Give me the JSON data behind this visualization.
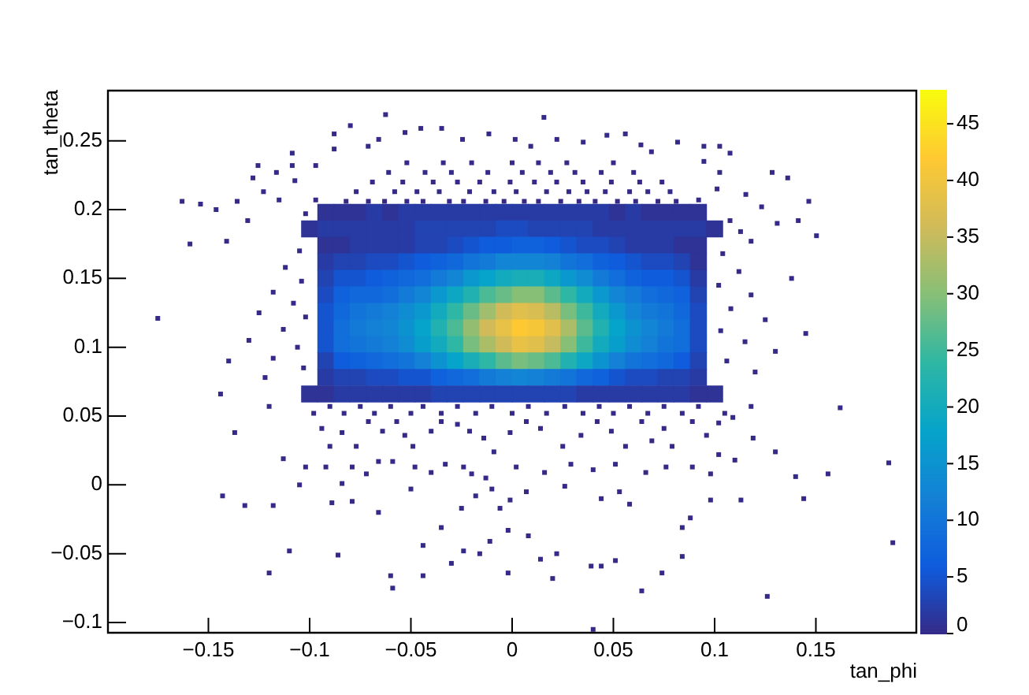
{
  "chart_data": {
    "type": "scatter",
    "xlabel": "tan_phi",
    "ylabel": "tan_theta",
    "xlim": [
      -0.2,
      0.2
    ],
    "ylim": [
      -0.108,
      0.287
    ],
    "xticks": [
      -0.15,
      -0.1,
      -0.05,
      0,
      0.05,
      0.1,
      0.15
    ],
    "yticks": [
      -0.1,
      -0.05,
      0,
      0.05,
      0.1,
      0.15,
      0.2,
      0.25
    ],
    "clim": [
      0,
      48
    ],
    "cticks": [
      0,
      5,
      10,
      15,
      20,
      25,
      30,
      35,
      40,
      45
    ],
    "marker": "square",
    "series": [
      {
        "x": [
          -0.092,
          -0.084,
          -0.076,
          -0.068,
          -0.06,
          -0.052,
          -0.044,
          -0.036,
          -0.028,
          -0.02,
          -0.012,
          -0.004,
          0.004,
          0.012,
          0.02,
          0.028,
          0.036,
          0.044,
          0.052,
          0.06,
          0.068,
          0.076,
          0.084,
          0.092,
          -0.1,
          -0.092,
          -0.084,
          -0.076,
          -0.068,
          -0.06,
          -0.052,
          -0.044,
          -0.036,
          -0.028,
          -0.02,
          -0.012,
          -0.004,
          0.004,
          0.012,
          0.02,
          0.028,
          0.036,
          0.044,
          0.052,
          0.06,
          0.068,
          0.076,
          0.084,
          0.092,
          0.1,
          -0.092,
          -0.084,
          -0.076,
          -0.068,
          -0.06,
          -0.052,
          -0.044,
          -0.036,
          -0.028,
          -0.02,
          -0.012,
          -0.004,
          0.004,
          0.012,
          0.02,
          0.028,
          0.036,
          0.044,
          0.052,
          0.06,
          0.068,
          0.076,
          0.084,
          0.092,
          -0.092,
          -0.084,
          -0.076,
          -0.068,
          -0.06,
          -0.052,
          -0.044,
          -0.036,
          -0.028,
          -0.02,
          -0.012,
          -0.004,
          0.004,
          0.012,
          0.02,
          0.028,
          0.036,
          0.044,
          0.052,
          0.06,
          0.068,
          0.076,
          0.084,
          0.092,
          -0.092,
          -0.084,
          -0.076,
          -0.068,
          -0.06,
          -0.052,
          -0.044,
          -0.036,
          -0.028,
          -0.02,
          -0.012,
          -0.004,
          0.004,
          0.012,
          0.02,
          0.028,
          0.036,
          0.044,
          0.052,
          0.06,
          0.068,
          0.076,
          0.084,
          0.092,
          -0.092,
          -0.084,
          -0.076,
          -0.068,
          -0.06,
          -0.052,
          -0.044,
          -0.036,
          -0.028,
          -0.02,
          -0.012,
          -0.004,
          0.004,
          0.012,
          0.02,
          0.028,
          0.036,
          0.044,
          0.052,
          0.06,
          0.068,
          0.076,
          0.084,
          0.092,
          -0.092,
          -0.084,
          -0.076,
          -0.068,
          -0.06,
          -0.052,
          -0.044,
          -0.036,
          -0.028,
          -0.02,
          -0.012,
          -0.004,
          0.004,
          0.012,
          0.02,
          0.028,
          0.036,
          0.044,
          0.052,
          0.06,
          0.068,
          0.076,
          0.084,
          0.092,
          -0.092,
          -0.084,
          -0.076,
          -0.068,
          -0.06,
          -0.052,
          -0.044,
          -0.036,
          -0.028,
          -0.02,
          -0.012,
          -0.004,
          0.004,
          0.012,
          0.02,
          0.028,
          0.036,
          0.044,
          0.052,
          0.06,
          0.068,
          0.076,
          0.084,
          0.092,
          -0.092,
          -0.084,
          -0.076,
          -0.068,
          -0.06,
          -0.052,
          -0.044,
          -0.036,
          -0.028,
          -0.02,
          -0.012,
          -0.004,
          0.004,
          0.012,
          0.02,
          0.028,
          0.036,
          0.044,
          0.052,
          0.06,
          0.068,
          0.076,
          0.084,
          0.092,
          -0.092,
          -0.084,
          -0.076,
          -0.068,
          -0.06,
          -0.052,
          -0.044,
          -0.036,
          -0.028,
          -0.02,
          -0.012,
          -0.004,
          0.004,
          0.012,
          0.02,
          0.028,
          0.036,
          0.044,
          0.052,
          0.06,
          0.068,
          0.076,
          0.084,
          0.092,
          -0.092,
          -0.084,
          -0.076,
          -0.068,
          -0.06,
          -0.052,
          -0.044,
          -0.036,
          -0.028,
          -0.02,
          -0.012,
          -0.004,
          0.004,
          0.012,
          0.02,
          0.028,
          0.036,
          0.044,
          0.052,
          0.06,
          0.068,
          0.076,
          0.084,
          0.092,
          -0.1,
          -0.092,
          -0.084,
          -0.076,
          -0.068,
          -0.06,
          -0.052,
          -0.044,
          -0.036,
          -0.028,
          -0.02,
          -0.012,
          -0.004,
          0.004,
          0.012,
          0.02,
          0.028,
          0.036,
          0.044,
          0.052,
          0.06,
          0.068,
          0.076,
          0.084,
          0.092,
          0.1
        ],
        "values": [
          0.198,
          0.198,
          0.198,
          0.198,
          0.198,
          0.198,
          0.198,
          0.198,
          0.198,
          0.198,
          0.198,
          0.198,
          0.198,
          0.198,
          0.198,
          0.198,
          0.198,
          0.198,
          0.198,
          0.198,
          0.198,
          0.198,
          0.198,
          0.198,
          0.186,
          0.186,
          0.186,
          0.186,
          0.186,
          0.186,
          0.186,
          0.186,
          0.186,
          0.186,
          0.186,
          0.186,
          0.186,
          0.186,
          0.186,
          0.186,
          0.186,
          0.186,
          0.186,
          0.186,
          0.186,
          0.186,
          0.186,
          0.186,
          0.186,
          0.186,
          0.174,
          0.174,
          0.174,
          0.174,
          0.174,
          0.174,
          0.174,
          0.174,
          0.174,
          0.174,
          0.174,
          0.174,
          0.174,
          0.174,
          0.174,
          0.174,
          0.174,
          0.174,
          0.174,
          0.174,
          0.174,
          0.174,
          0.174,
          0.174,
          0.162,
          0.162,
          0.162,
          0.162,
          0.162,
          0.162,
          0.162,
          0.162,
          0.162,
          0.162,
          0.162,
          0.162,
          0.162,
          0.162,
          0.162,
          0.162,
          0.162,
          0.162,
          0.162,
          0.162,
          0.162,
          0.162,
          0.162,
          0.162,
          0.15,
          0.15,
          0.15,
          0.15,
          0.15,
          0.15,
          0.15,
          0.15,
          0.15,
          0.15,
          0.15,
          0.15,
          0.15,
          0.15,
          0.15,
          0.15,
          0.15,
          0.15,
          0.15,
          0.15,
          0.15,
          0.15,
          0.15,
          0.15,
          0.138,
          0.138,
          0.138,
          0.138,
          0.138,
          0.138,
          0.138,
          0.138,
          0.138,
          0.138,
          0.138,
          0.138,
          0.138,
          0.138,
          0.138,
          0.138,
          0.138,
          0.138,
          0.138,
          0.138,
          0.138,
          0.138,
          0.138,
          0.138,
          0.126,
          0.126,
          0.126,
          0.126,
          0.126,
          0.126,
          0.126,
          0.126,
          0.126,
          0.126,
          0.126,
          0.126,
          0.126,
          0.126,
          0.126,
          0.126,
          0.126,
          0.126,
          0.126,
          0.126,
          0.126,
          0.126,
          0.126,
          0.126,
          0.114,
          0.114,
          0.114,
          0.114,
          0.114,
          0.114,
          0.114,
          0.114,
          0.114,
          0.114,
          0.114,
          0.114,
          0.114,
          0.114,
          0.114,
          0.114,
          0.114,
          0.114,
          0.114,
          0.114,
          0.114,
          0.114,
          0.114,
          0.114,
          0.102,
          0.102,
          0.102,
          0.102,
          0.102,
          0.102,
          0.102,
          0.102,
          0.102,
          0.102,
          0.102,
          0.102,
          0.102,
          0.102,
          0.102,
          0.102,
          0.102,
          0.102,
          0.102,
          0.102,
          0.102,
          0.102,
          0.102,
          0.102,
          0.09,
          0.09,
          0.09,
          0.09,
          0.09,
          0.09,
          0.09,
          0.09,
          0.09,
          0.09,
          0.09,
          0.09,
          0.09,
          0.09,
          0.09,
          0.09,
          0.09,
          0.09,
          0.09,
          0.09,
          0.09,
          0.09,
          0.09,
          0.09,
          0.078,
          0.078,
          0.078,
          0.078,
          0.078,
          0.078,
          0.078,
          0.078,
          0.078,
          0.078,
          0.078,
          0.078,
          0.078,
          0.078,
          0.078,
          0.078,
          0.078,
          0.078,
          0.078,
          0.078,
          0.078,
          0.078,
          0.078,
          0.078,
          0.066,
          0.066,
          0.066,
          0.066,
          0.066,
          0.066,
          0.066,
          0.066,
          0.066,
          0.066,
          0.066,
          0.066,
          0.066,
          0.066,
          0.066,
          0.066,
          0.066,
          0.066,
          0.066,
          0.066,
          0.066,
          0.066,
          0.066,
          0.066,
          0.066,
          0.066
        ],
        "cvalues": [
          1,
          1,
          1,
          2,
          1,
          2,
          2,
          2,
          2,
          2,
          2,
          2,
          2,
          2,
          2,
          2,
          2,
          2,
          1,
          2,
          1,
          1,
          1,
          1,
          1,
          2,
          2,
          2,
          2,
          2,
          2,
          3,
          3,
          3,
          3,
          3,
          4,
          4,
          3,
          3,
          3,
          3,
          2,
          2,
          2,
          2,
          2,
          2,
          2,
          1,
          1,
          1,
          2,
          2,
          2,
          2,
          3,
          3,
          4,
          5,
          6,
          6,
          7,
          7,
          6,
          5,
          4,
          4,
          3,
          2,
          2,
          2,
          1,
          1,
          2,
          3,
          3,
          4,
          4,
          5,
          6,
          7,
          8,
          10,
          11,
          13,
          13,
          13,
          12,
          10,
          9,
          7,
          6,
          5,
          4,
          4,
          3,
          1,
          3,
          5,
          5,
          6,
          7,
          8,
          9,
          11,
          13,
          16,
          18,
          20,
          21,
          21,
          19,
          16,
          14,
          11,
          9,
          7,
          6,
          6,
          5,
          2,
          4,
          7,
          8,
          8,
          9,
          11,
          13,
          16,
          19,
          22,
          26,
          28,
          30,
          30,
          27,
          24,
          20,
          16,
          13,
          11,
          9,
          8,
          7,
          3,
          5,
          8,
          10,
          11,
          12,
          14,
          16,
          20,
          24,
          28,
          32,
          36,
          38,
          37,
          34,
          29,
          25,
          20,
          16,
          13,
          11,
          10,
          8,
          4,
          5,
          9,
          11,
          12,
          13,
          15,
          18,
          22,
          26,
          31,
          36,
          39,
          42,
          41,
          38,
          33,
          27,
          22,
          18,
          15,
          13,
          11,
          9,
          4,
          5,
          9,
          10,
          11,
          12,
          14,
          17,
          20,
          24,
          29,
          33,
          36,
          39,
          38,
          35,
          30,
          25,
          20,
          17,
          14,
          12,
          10,
          9,
          4,
          3,
          6,
          7,
          8,
          9,
          10,
          12,
          15,
          18,
          21,
          24,
          27,
          29,
          28,
          26,
          22,
          19,
          15,
          12,
          10,
          9,
          8,
          6,
          3,
          2,
          3,
          3,
          4,
          4,
          5,
          5,
          7,
          8,
          9,
          11,
          12,
          13,
          12,
          11,
          10,
          8,
          7,
          5,
          4,
          4,
          3,
          3,
          2,
          1,
          1,
          2,
          2,
          2,
          2,
          2,
          2,
          3,
          3,
          3,
          3,
          3,
          3,
          3,
          3,
          3,
          2,
          2,
          2,
          2,
          2,
          2,
          2,
          1,
          1
        ],
        "colors": [
          "#2f3395",
          "#2f3395",
          "#2f3395",
          "#283ba4",
          "#2f3395",
          "#283ba4",
          "#283ba4",
          "#283ba4",
          "#283ba4",
          "#283ba4",
          "#283ba4",
          "#283ba4",
          "#283ba4",
          "#283ba4",
          "#283ba4",
          "#283ba4",
          "#283ba4",
          "#283ba4",
          "#2f3395",
          "#283ba4",
          "#2f3395",
          "#2f3395",
          "#2f3395",
          "#2f3395",
          "#2f3395",
          "#283ba4",
          "#283ba4",
          "#283ba4",
          "#283ba4",
          "#283ba4",
          "#283ba4",
          "#2243b2",
          "#2243b2",
          "#2243b2",
          "#2243b2",
          "#2243b2",
          "#1c4bc1",
          "#1c4bc1",
          "#2243b2",
          "#2243b2",
          "#2243b2",
          "#2243b2",
          "#283ba4",
          "#283ba4",
          "#283ba4",
          "#283ba4",
          "#283ba4",
          "#283ba4",
          "#283ba4",
          "#2f3395",
          "#2f3395",
          "#2f3395",
          "#283ba4",
          "#283ba4",
          "#283ba4",
          "#283ba4",
          "#2243b2",
          "#2243b2",
          "#1c4bc1",
          "#1554cf",
          "#0f5cdd",
          "#0f5cdd",
          "#1062dc",
          "#1062dc",
          "#0f5cdd",
          "#1554cf",
          "#1c4bc1",
          "#1c4bc1",
          "#2243b2",
          "#283ba4",
          "#283ba4",
          "#283ba4",
          "#2f3395",
          "#2f3395",
          "#283ba4",
          "#2243b2",
          "#2243b2",
          "#1c4bc1",
          "#1c4bc1",
          "#1554cf",
          "#0f5cdd",
          "#1062dc",
          "#1168db",
          "#1274d8",
          "#137ad7",
          "#1286d4",
          "#1286d4",
          "#1286d4",
          "#1481d6",
          "#1274d8",
          "#116eda",
          "#1062dc",
          "#0f5cdd",
          "#1554cf",
          "#1c4bc1",
          "#1c4bc1",
          "#2243b2",
          "#2f3395",
          "#2243b2",
          "#1554cf",
          "#1554cf",
          "#0f5cdd",
          "#1062dc",
          "#1168db",
          "#116eda",
          "#137ad7",
          "#1286d4",
          "#0b98ce",
          "#06a4ca",
          "#13aabd",
          "#1aadb7",
          "#1aadb7",
          "#0da7c3",
          "#0b98ce",
          "#0f8cd2",
          "#137ad7",
          "#116eda",
          "#1062dc",
          "#0f5cdd",
          "#0f5cdd",
          "#1554cf",
          "#283ba4",
          "#1c4bc1",
          "#1062dc",
          "#1168db",
          "#1168db",
          "#116eda",
          "#137ad7",
          "#1286d4",
          "#0b98ce",
          "#0da7c3",
          "#21b1b0",
          "#4cba95",
          "#69bc86",
          "#87bf77",
          "#87bf77",
          "#5bbb8d",
          "#2eb7a4",
          "#13aabd",
          "#0b98ce",
          "#1286d4",
          "#137ad7",
          "#116eda",
          "#1168db",
          "#1062dc",
          "#2243b2",
          "#1554cf",
          "#1168db",
          "#1274d8",
          "#137ad7",
          "#1481d6",
          "#0f8cd2",
          "#0b98ce",
          "#13aabd",
          "#2eb7a4",
          "#69bc86",
          "#a0be6d",
          "#d1bb59",
          "#e0bf4c",
          "#d8bd53",
          "#b8bc63",
          "#78be7e",
          "#3db89c",
          "#13aabd",
          "#0b98ce",
          "#1286d4",
          "#137ad7",
          "#1274d8",
          "#1168db",
          "#1c4bc1",
          "#1554cf",
          "#116eda",
          "#137ad7",
          "#1481d6",
          "#1286d4",
          "#0d92d0",
          "#06a4ca",
          "#21b1b0",
          "#4cba95",
          "#93be72",
          "#d1bb59",
          "#e7c246",
          "#fec832",
          "#f6c639",
          "#e0bf4c",
          "#acbd68",
          "#5bbb8d",
          "#21b1b0",
          "#06a4ca",
          "#0d92d0",
          "#1286d4",
          "#137ad7",
          "#116eda",
          "#1c4bc1",
          "#1554cf",
          "#116eda",
          "#1274d8",
          "#137ad7",
          "#1481d6",
          "#0f8cd2",
          "#089ecc",
          "#13aabd",
          "#2eb7a4",
          "#78be7e",
          "#acbd68",
          "#d1bb59",
          "#e7c246",
          "#e0bf4c",
          "#c4bc5e",
          "#87bf77",
          "#3db89c",
          "#13aabd",
          "#089ecc",
          "#0f8cd2",
          "#1481d6",
          "#1274d8",
          "#116eda",
          "#1c4bc1",
          "#2243b2",
          "#0f5cdd",
          "#1062dc",
          "#1168db",
          "#116eda",
          "#1274d8",
          "#1481d6",
          "#0d92d0",
          "#06a4ca",
          "#1aadb7",
          "#2eb7a4",
          "#5bbb8d",
          "#78be7e",
          "#69bc86",
          "#4cba95",
          "#21b1b0",
          "#0da7c3",
          "#0d92d0",
          "#1481d6",
          "#1274d8",
          "#116eda",
          "#1168db",
          "#0f5cdd",
          "#2243b2",
          "#283ba4",
          "#2243b2",
          "#2243b2",
          "#1c4bc1",
          "#1c4bc1",
          "#1554cf",
          "#1554cf",
          "#1062dc",
          "#1168db",
          "#116eda",
          "#137ad7",
          "#1481d6",
          "#1286d4",
          "#1481d6",
          "#137ad7",
          "#1274d8",
          "#1168db",
          "#1062dc",
          "#1554cf",
          "#1c4bc1",
          "#1c4bc1",
          "#2243b2",
          "#2243b2",
          "#283ba4",
          "#2f3395",
          "#2f3395",
          "#283ba4",
          "#283ba4",
          "#283ba4",
          "#283ba4",
          "#283ba4",
          "#283ba4",
          "#2243b2",
          "#2243b2",
          "#2243b2",
          "#2243b2",
          "#2243b2",
          "#2243b2",
          "#2243b2",
          "#2243b2",
          "#2243b2",
          "#283ba4",
          "#283ba4",
          "#283ba4",
          "#283ba4",
          "#283ba4",
          "#283ba4",
          "#283ba4",
          "#2f3395",
          "#2f3395"
        ]
      },
      {
        "color": "#352a87",
        "x": [
          -0.0625,
          0.0157,
          -0.0799,
          -0.0451,
          -0.0348,
          -0.0529,
          0.0559,
          0.0817,
          0.0947,
          0.1025,
          -0.0879,
          -0.1086,
          -0.0879,
          -0.0711,
          -0.0659,
          -0.0245,
          -0.0115,
          0.0015,
          0.0092,
          0.0221,
          0.0351,
          0.0468,
          0.0636,
          0.0688,
          -0.1255,
          -0.1086,
          -0.097,
          0.1076,
          0.0947,
          -0.128,
          -0.1164,
          -0.1073,
          -0.1358,
          -0.163,
          -0.1539,
          -0.1462,
          -0.1306,
          -0.1228,
          -0.1151,
          0.1154,
          0.1232,
          0.1309,
          0.1284,
          0.1361,
          0.1465,
          0.1413,
          0.1503,
          0.1076,
          0.1128,
          0.118,
          0.1012,
          0.0921,
          0.1025,
          -0.097,
          -0.102,
          -0.141,
          -0.1591,
          -0.082,
          -0.071,
          -0.063,
          -0.052,
          -0.044,
          -0.031,
          -0.024,
          -0.013,
          -0.004,
          0.006,
          0.013,
          0.024,
          0.033,
          0.041,
          0.052,
          0.061,
          0.072,
          0.081,
          -0.077,
          -0.058,
          -0.047,
          -0.036,
          -0.021,
          -0.009,
          0.002,
          0.017,
          0.028,
          0.037,
          0.046,
          0.058,
          0.067,
          0.078,
          -0.069,
          -0.054,
          -0.039,
          -0.027,
          -0.016,
          -0.001,
          0.011,
          0.022,
          0.035,
          0.049,
          0.063,
          0.074,
          -0.061,
          -0.043,
          -0.03,
          -0.012,
          0.005,
          0.019,
          0.031,
          0.044,
          0.06,
          -0.052,
          -0.034,
          -0.02,
          0.0,
          0.013,
          0.027,
          0.05,
          -0.105,
          -0.112,
          -0.104,
          -0.118,
          -0.108,
          -0.125,
          -0.102,
          -0.113,
          -0.13,
          -0.106,
          -0.118,
          -0.103,
          -0.122,
          -0.14,
          -0.175,
          0.104,
          0.112,
          0.102,
          0.118,
          0.108,
          0.125,
          0.103,
          0.115,
          0.13,
          0.106,
          0.12,
          0.138,
          0.145,
          -0.12,
          -0.09,
          -0.075,
          -0.06,
          -0.044,
          -0.027,
          -0.01,
          0.008,
          0.026,
          0.043,
          0.058,
          0.075,
          0.092,
          0.118,
          -0.098,
          -0.083,
          -0.068,
          -0.05,
          -0.035,
          -0.018,
          0.0,
          0.017,
          0.035,
          0.05,
          0.067,
          0.084,
          0.105,
          -0.094,
          -0.09,
          -0.084,
          -0.077,
          -0.071,
          -0.064,
          -0.057,
          -0.053,
          -0.049,
          -0.04,
          -0.035,
          -0.027,
          -0.021,
          -0.014,
          -0.009,
          -0.001,
          0.007,
          0.014,
          0.025,
          0.034,
          0.042,
          0.049,
          0.056,
          0.064,
          0.069,
          0.075,
          0.079,
          0.089,
          0.096,
          0.102,
          0.119,
          0.109,
          -0.137,
          -0.113,
          -0.144,
          -0.143,
          -0.132,
          -0.118,
          -0.11,
          -0.12,
          -0.086,
          -0.06,
          -0.059,
          -0.044,
          -0.044,
          -0.035,
          -0.03,
          -0.024,
          -0.016,
          -0.011,
          -0.002,
          -0.002,
          0.008,
          0.014,
          0.02,
          0.022,
          0.039,
          0.044,
          0.051,
          0.064,
          0.074,
          0.084,
          0.084,
          0.126,
          0.188,
          0.186,
          0.156,
          0.14,
          0.13,
          0.162,
          0.144,
          0.113,
          0.098,
          0.088,
          0.11,
          0.053,
          0.058,
          0.044,
          0.026,
          0.007,
          -0.001,
          -0.006,
          -0.01,
          -0.018,
          -0.025,
          -0.05,
          -0.066,
          -0.079,
          -0.089,
          -0.105,
          -0.084,
          -0.102,
          -0.092,
          -0.079,
          -0.072,
          -0.066,
          -0.059,
          -0.048,
          -0.04,
          -0.033,
          -0.024,
          -0.02,
          -0.013,
          0.002,
          0.016,
          0.029,
          0.04,
          0.051,
          0.066,
          0.076,
          0.089,
          0.098,
          0.102,
          0.04
        ],
        "values": [
          0.269,
          0.267,
          0.261,
          0.259,
          0.259,
          0.256,
          0.255,
          0.249,
          0.246,
          0.246,
          0.255,
          0.241,
          0.244,
          0.246,
          0.251,
          0.251,
          0.255,
          0.251,
          0.246,
          0.251,
          0.249,
          0.254,
          0.247,
          0.242,
          0.232,
          0.232,
          0.232,
          0.241,
          0.235,
          0.223,
          0.227,
          0.221,
          0.206,
          0.206,
          0.204,
          0.2,
          0.192,
          0.213,
          0.207,
          0.211,
          0.202,
          0.19,
          0.227,
          0.223,
          0.206,
          0.192,
          0.181,
          0.192,
          0.184,
          0.177,
          0.215,
          0.207,
          0.227,
          0.207,
          0.197,
          0.177,
          0.175,
          0.206,
          0.206,
          0.206,
          0.206,
          0.206,
          0.206,
          0.206,
          0.206,
          0.206,
          0.206,
          0.206,
          0.206,
          0.206,
          0.206,
          0.206,
          0.206,
          0.206,
          0.206,
          0.213,
          0.213,
          0.213,
          0.213,
          0.213,
          0.213,
          0.213,
          0.213,
          0.213,
          0.213,
          0.213,
          0.213,
          0.213,
          0.213,
          0.22,
          0.22,
          0.22,
          0.22,
          0.22,
          0.22,
          0.22,
          0.22,
          0.22,
          0.22,
          0.22,
          0.22,
          0.227,
          0.227,
          0.227,
          0.227,
          0.227,
          0.227,
          0.227,
          0.227,
          0.227,
          0.234,
          0.234,
          0.234,
          0.234,
          0.234,
          0.234,
          0.234,
          0.17,
          0.158,
          0.148,
          0.14,
          0.132,
          0.125,
          0.122,
          0.113,
          0.105,
          0.1,
          0.092,
          0.085,
          0.078,
          0.09,
          0.121,
          0.168,
          0.155,
          0.145,
          0.138,
          0.128,
          0.12,
          0.112,
          0.104,
          0.097,
          0.09,
          0.082,
          0.15,
          0.11,
          0.057,
          0.057,
          0.057,
          0.057,
          0.057,
          0.057,
          0.057,
          0.057,
          0.057,
          0.057,
          0.057,
          0.057,
          0.057,
          0.057,
          0.052,
          0.052,
          0.052,
          0.052,
          0.052,
          0.052,
          0.052,
          0.052,
          0.052,
          0.052,
          0.052,
          0.052,
          0.052,
          0.041,
          0.028,
          0.038,
          0.028,
          0.046,
          0.039,
          0.046,
          0.036,
          0.028,
          0.039,
          0.046,
          0.044,
          0.039,
          0.034,
          0.024,
          0.038,
          0.046,
          0.041,
          0.028,
          0.036,
          0.046,
          0.039,
          0.028,
          0.046,
          0.032,
          0.041,
          0.028,
          0.046,
          0.036,
          0.045,
          0.034,
          0.049,
          0.038,
          0.019,
          0.066,
          -0.008,
          -0.015,
          -0.015,
          -0.048,
          -0.064,
          -0.051,
          -0.066,
          -0.075,
          -0.066,
          -0.044,
          -0.031,
          -0.057,
          -0.048,
          -0.05,
          -0.041,
          -0.033,
          -0.064,
          -0.037,
          -0.054,
          -0.068,
          -0.05,
          -0.059,
          -0.059,
          -0.055,
          -0.077,
          -0.064,
          -0.052,
          -0.031,
          -0.081,
          -0.042,
          0.016,
          0.008,
          0.006,
          0.024,
          0.056,
          -0.01,
          -0.011,
          -0.011,
          -0.024,
          0.018,
          -0.005,
          -0.014,
          -0.01,
          -0.001,
          -0.005,
          -0.011,
          -0.017,
          -0.003,
          -0.008,
          -0.017,
          -0.003,
          -0.02,
          -0.012,
          -0.013,
          0.0,
          0.001,
          0.013,
          0.013,
          0.013,
          0.008,
          0.017,
          0.017,
          0.013,
          0.009,
          0.015,
          0.013,
          0.008,
          0.005,
          0.013,
          0.009,
          0.015,
          0.011,
          0.015,
          0.009,
          0.013,
          0.013,
          0.008,
          0.022,
          -0.105
        ]
      }
    ]
  }
}
